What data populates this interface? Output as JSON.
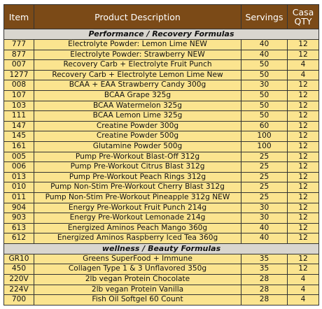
{
  "table": {
    "headers": [
      "Item",
      "Product Description",
      "Servings",
      "Casa QTY"
    ],
    "sections": [
      {
        "title": "Performance / Recovery Formulas",
        "rows": [
          [
            "777",
            "Electrolyte Powder: Lemon Lime NEW",
            "40",
            "12"
          ],
          [
            "877",
            "Electrolyte Powder: Strawberry NEW",
            "40",
            "12"
          ],
          [
            "007",
            "Recovery Carb + Electrolyte Fruit Punch",
            "50",
            "4"
          ],
          [
            "1277",
            "Recovery Carb + Electrolyte Lemon Lime New",
            "50",
            "4"
          ],
          [
            "008",
            "BCAA + EAA Strawberry Candy 300g",
            "30",
            "12"
          ],
          [
            "107",
            "BCAA Grape 325g",
            "50",
            "12"
          ],
          [
            "103",
            "BCAA Watermelon 325g",
            "50",
            "12"
          ],
          [
            "111",
            "BCAA Lemon Lime 325g",
            "50",
            "12"
          ],
          [
            "147",
            "Creatine Powder 300g",
            "60",
            "12"
          ],
          [
            "145",
            "Creatine Powder 500g",
            "100",
            "12"
          ],
          [
            "161",
            "Glutamine Powder 500g",
            "100",
            "12"
          ],
          [
            "005",
            "Pump Pre-Workout Blast-Off 312g",
            "25",
            "12"
          ],
          [
            "006",
            "Pump Pre-Workout Citrus Blast 312g",
            "25",
            "12"
          ],
          [
            "013",
            "Pump Pre-Workout Peach Rings 312g",
            "25",
            "12"
          ],
          [
            "010",
            "Pump Non-Stim Pre-Workout Cherry Blast 312g",
            "25",
            "12"
          ],
          [
            "011",
            "Pump Non-Stim Pre-Workout Pineapple 312g NEW",
            "25",
            "12"
          ],
          [
            "904",
            "Energy Pre-Workout Fruit Punch 214g",
            "30",
            "12"
          ],
          [
            "903",
            "Energy Pre-Workout Lemonade 214g",
            "30",
            "12"
          ],
          [
            "613",
            "Energized Aminos Peach Mango 360g",
            "40",
            "12"
          ],
          [
            "612",
            "Energized Aminos Raspberry Iced Tea 360g",
            "40",
            "12"
          ]
        ]
      },
      {
        "title": "wellness / Beauty Formulas",
        "rows": [
          [
            "GR10",
            "Greens SuperFood + Immune",
            "35",
            "12"
          ],
          [
            "450",
            "Collagen Type 1 & 3 Unflavored 350g",
            "35",
            "12"
          ],
          [
            "220V",
            "2lb vegan Protein Chocolate",
            "28",
            "4"
          ],
          [
            "224V",
            "2lb vegan Protein Vanilla",
            "28",
            "4"
          ],
          [
            "700",
            "Fish Oil Softgel 60 Count",
            "28",
            "4"
          ]
        ]
      }
    ]
  }
}
